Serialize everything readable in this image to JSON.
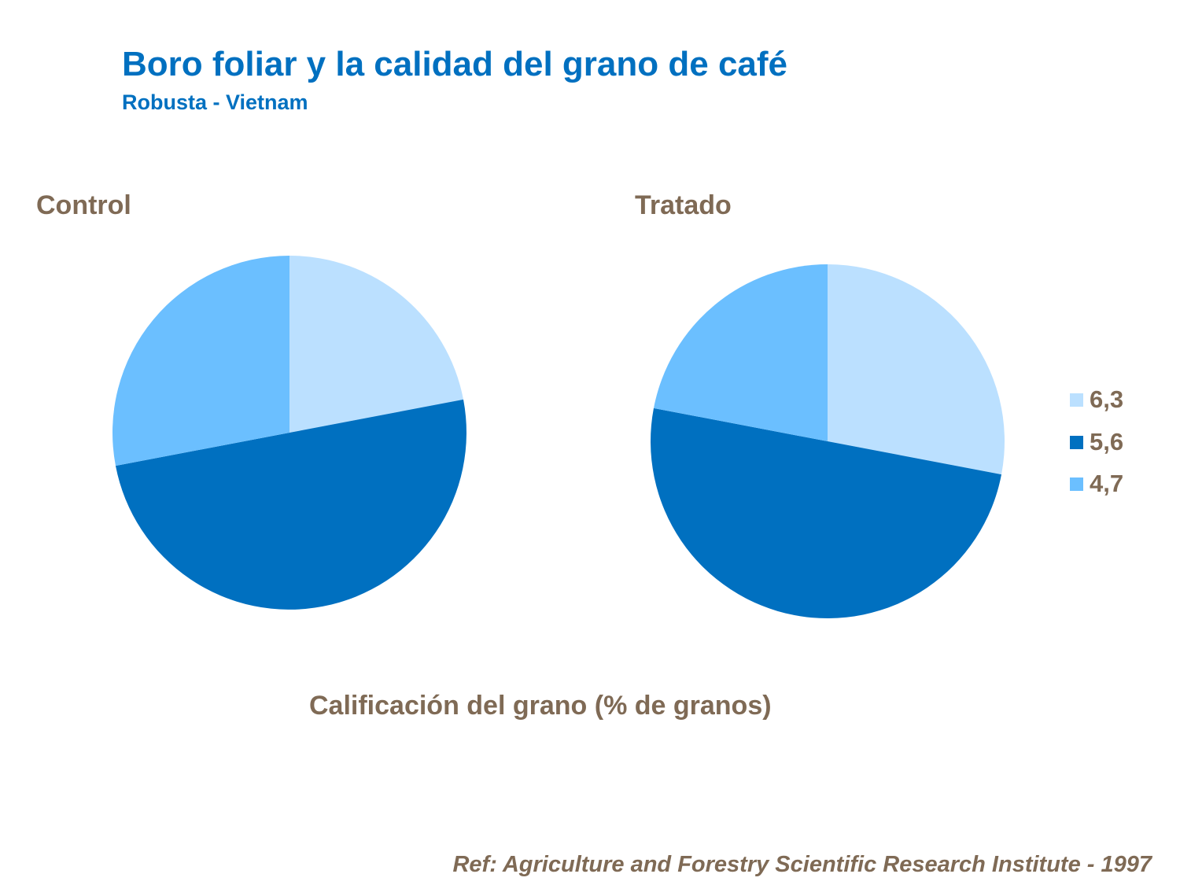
{
  "title": "Boro foliar y la calidad del grano de café",
  "subtitle": "Robusta - Vietnam",
  "reference": "Ref: Agriculture and Forestry Scientific Research Institute - 1997",
  "chart_data": {
    "type": "pie",
    "xlabel": "Calificación del grano (% de granos)",
    "legend_position": "right",
    "legend": [
      {
        "label": "6,3",
        "color": "#BBE0FF"
      },
      {
        "label": "5,6",
        "color": "#0070C0"
      },
      {
        "label": "4,7",
        "color": "#6BBFFF"
      }
    ],
    "charts": [
      {
        "title": "Control",
        "values": [
          22,
          50,
          28
        ]
      },
      {
        "title": "Tratado",
        "values": [
          28,
          50,
          22
        ]
      }
    ]
  }
}
